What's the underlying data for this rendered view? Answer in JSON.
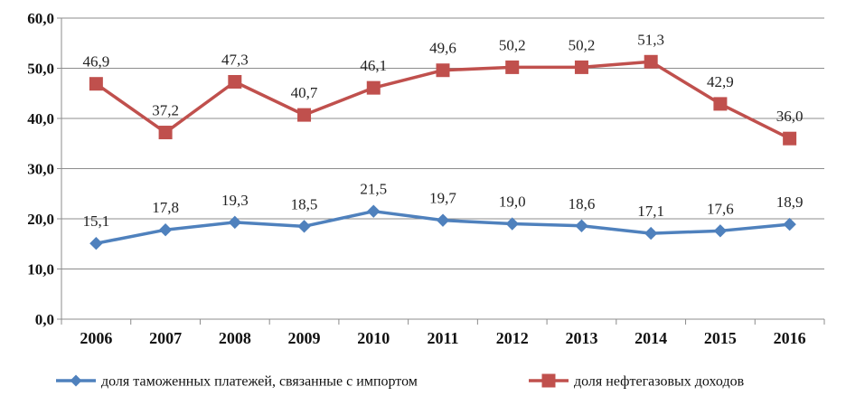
{
  "chart_data": {
    "type": "line",
    "title": "",
    "xlabel": "",
    "ylabel": "",
    "categories": [
      "2006",
      "2007",
      "2008",
      "2009",
      "2010",
      "2011",
      "2012",
      "2013",
      "2014",
      "2015",
      "2016"
    ],
    "ylim": [
      0,
      60
    ],
    "yticks": [
      0,
      10,
      20,
      30,
      40,
      50,
      60
    ],
    "ytick_labels": [
      "0,0",
      "10,0",
      "20,0",
      "30,0",
      "40,0",
      "50,0",
      "60,0"
    ],
    "grid": true,
    "legend_position": "bottom",
    "series": [
      {
        "name": "доля таможенных платежей, связанные с импортом",
        "color": "#4F81BD",
        "marker": "diamond",
        "values": [
          15.1,
          17.8,
          19.3,
          18.5,
          21.5,
          19.7,
          19.0,
          18.6,
          17.1,
          17.6,
          18.9
        ],
        "labels": [
          "15,1",
          "17,8",
          "19,3",
          "18,5",
          "21,5",
          "19,7",
          "19,0",
          "18,6",
          "17,1",
          "17,6",
          "18,9"
        ]
      },
      {
        "name": "доля нефтегазовых  доходов",
        "color": "#C0504D",
        "marker": "square",
        "values": [
          46.9,
          37.2,
          47.3,
          40.7,
          46.1,
          49.6,
          50.2,
          50.2,
          51.3,
          42.9,
          36.0
        ],
        "labels": [
          "46,9",
          "37,2",
          "47,3",
          "40,7",
          "46,1",
          "49,6",
          "50,2",
          "50,2",
          "51,3",
          "42,9",
          "36,0"
        ]
      }
    ]
  }
}
